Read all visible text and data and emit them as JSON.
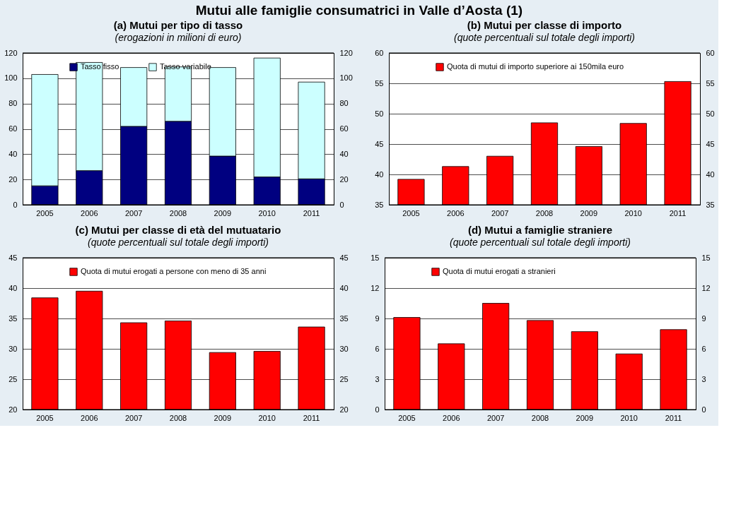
{
  "chart_data": [
    {
      "type": "bar",
      "title": "(a) Mutui per tipo di tasso",
      "subtitle": "(erogazioni in milioni di euro)",
      "annotations": [
        "Mutui alle famiglie consumatrici in Valle d’Aosta (1)"
      ],
      "categories": [
        "2005",
        "2006",
        "2007",
        "2008",
        "2009",
        "2010",
        "2011"
      ],
      "stacked": true,
      "series": [
        {
          "name": "Tasso fisso",
          "color": "#000080",
          "values": [
            15,
            27,
            62,
            66,
            38.5,
            22,
            20.5
          ]
        },
        {
          "name": "Tasso variabile",
          "color": "#ccffff",
          "values": [
            88,
            85.5,
            46.5,
            43,
            70,
            94,
            76.5
          ]
        }
      ],
      "ylim": [
        0,
        120
      ],
      "yticks": [
        0,
        20,
        40,
        60,
        80,
        100,
        120
      ],
      "y2lim": [
        0,
        120
      ],
      "y2ticks": [
        0,
        20,
        40,
        60,
        80,
        100,
        120
      ],
      "grid": "y",
      "legend": "top"
    },
    {
      "type": "bar",
      "title": "(b) Mutui per classe di importo",
      "subtitle": "(quote percentuali sul totale degli importi)",
      "categories": [
        "2005",
        "2006",
        "2007",
        "2008",
        "2009",
        "2010",
        "2011"
      ],
      "series": [
        {
          "name": "Quota di mutui di importo superiore ai 150mila euro",
          "color": "#ff0000",
          "values": [
            39.2,
            41.3,
            43,
            48.5,
            44.6,
            48.4,
            55.3
          ]
        }
      ],
      "ylim": [
        35,
        60
      ],
      "yticks": [
        35,
        40,
        45,
        50,
        55,
        60
      ],
      "y2lim": [
        35,
        60
      ],
      "y2ticks": [
        35,
        40,
        45,
        50,
        55,
        60
      ],
      "grid": "y",
      "legend": "top"
    },
    {
      "type": "bar",
      "title": "(c) Mutui per classe di età del mutuatario",
      "subtitle": "(quote percentuali sul totale degli importi)",
      "categories": [
        "2005",
        "2006",
        "2007",
        "2008",
        "2009",
        "2010",
        "2011"
      ],
      "series": [
        {
          "name": "Quota di mutui erogati a persone con meno di 35 anni",
          "color": "#ff0000",
          "values": [
            38.4,
            39.5,
            34.3,
            34.6,
            29.4,
            29.6,
            33.6
          ]
        }
      ],
      "ylim": [
        20,
        45
      ],
      "yticks": [
        20,
        25,
        30,
        35,
        40,
        45
      ],
      "y2lim": [
        20,
        45
      ],
      "y2ticks": [
        20,
        25,
        30,
        35,
        40,
        45
      ],
      "grid": "y",
      "legend": "top"
    },
    {
      "type": "bar",
      "title": "(d) Mutui a famiglie straniere",
      "subtitle": "(quote percentuali sul totale degli importi)",
      "categories": [
        "2005",
        "2006",
        "2007",
        "2008",
        "2009",
        "2010",
        "2011"
      ],
      "series": [
        {
          "name": "Quota di mutui erogati a stranieri",
          "color": "#ff0000",
          "values": [
            9.1,
            6.5,
            10.5,
            8.8,
            7.7,
            5.5,
            7.9
          ]
        }
      ],
      "ylim": [
        0,
        15
      ],
      "yticks": [
        0,
        3,
        6,
        9,
        12,
        15
      ],
      "y2lim": [
        0,
        15
      ],
      "y2ticks": [
        0,
        3,
        6,
        9,
        12,
        15
      ],
      "grid": "y",
      "legend": "top"
    }
  ]
}
